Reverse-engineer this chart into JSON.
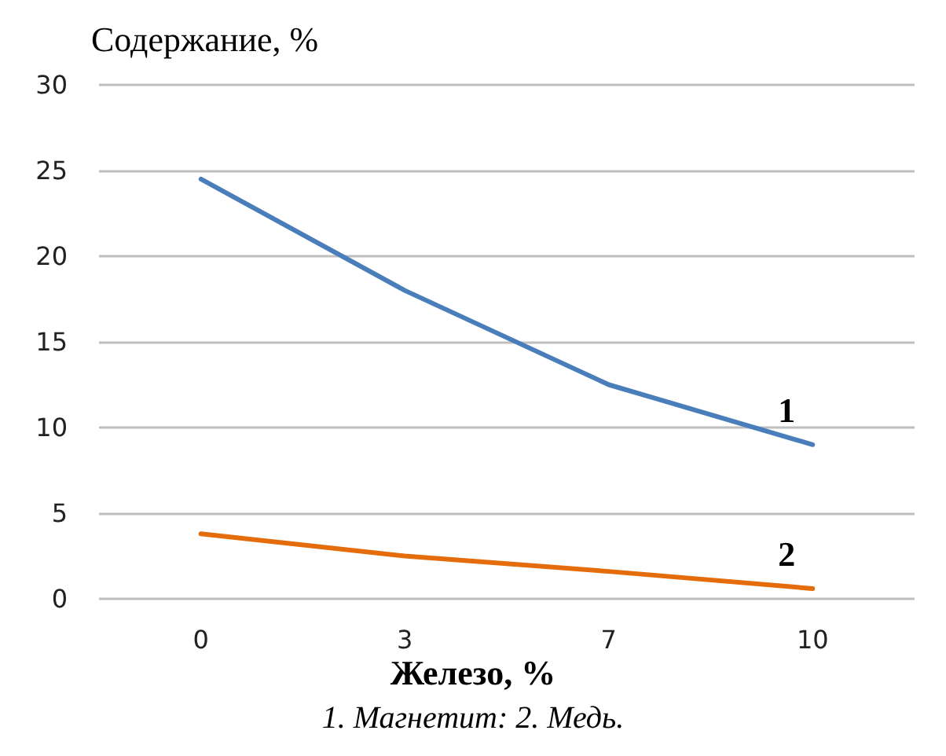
{
  "chart_data": {
    "type": "line",
    "ylabel": "Содержание, %",
    "xlabel": "Железо, %",
    "annotations": [
      "1. Магнетит: 2. Медь."
    ],
    "categories": [
      "0",
      "3",
      "7",
      "10"
    ],
    "series": [
      {
        "name": "1",
        "color": "#4a7ebb",
        "values": [
          24.5,
          18,
          12.5,
          9
        ]
      },
      {
        "name": "2",
        "color": "#e46c0a",
        "values": [
          3.8,
          2.5,
          1.6,
          0.6
        ]
      }
    ],
    "ylim": [
      0,
      30
    ],
    "yticks": [
      0,
      5,
      10,
      15,
      20,
      25,
      30
    ],
    "grid": "y",
    "legend": false,
    "marker": "none",
    "line_style": "solid"
  }
}
